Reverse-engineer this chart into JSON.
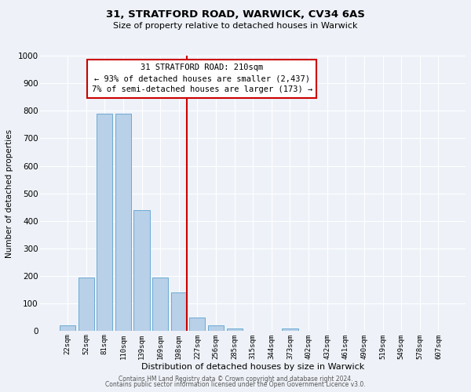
{
  "title1": "31, STRATFORD ROAD, WARWICK, CV34 6AS",
  "title2": "Size of property relative to detached houses in Warwick",
  "xlabel": "Distribution of detached houses by size in Warwick",
  "ylabel": "Number of detached properties",
  "bar_color": "#b8d0e8",
  "bar_edge_color": "#6aaad4",
  "background_color": "#eef2f8",
  "grid_color": "#ffffff",
  "categories": [
    "22sqm",
    "52sqm",
    "81sqm",
    "110sqm",
    "139sqm",
    "169sqm",
    "198sqm",
    "227sqm",
    "256sqm",
    "285sqm",
    "315sqm",
    "344sqm",
    "373sqm",
    "402sqm",
    "432sqm",
    "461sqm",
    "490sqm",
    "519sqm",
    "549sqm",
    "578sqm",
    "607sqm"
  ],
  "values": [
    20,
    195,
    790,
    790,
    440,
    195,
    140,
    50,
    20,
    10,
    0,
    0,
    10,
    0,
    0,
    0,
    0,
    0,
    0,
    0,
    0
  ],
  "ylim": [
    0,
    1000
  ],
  "yticks": [
    0,
    100,
    200,
    300,
    400,
    500,
    600,
    700,
    800,
    900,
    1000
  ],
  "annotation_title": "31 STRATFORD ROAD: 210sqm",
  "annotation_line1": "← 93% of detached houses are smaller (2,437)",
  "annotation_line2": "7% of semi-detached houses are larger (173) →",
  "annotation_box_color": "#ffffff",
  "annotation_box_edge_color": "#cc0000",
  "vline_color": "#cc0000",
  "footer1": "Contains HM Land Registry data © Crown copyright and database right 2024.",
  "footer2": "Contains public sector information licensed under the Open Government Licence v3.0."
}
